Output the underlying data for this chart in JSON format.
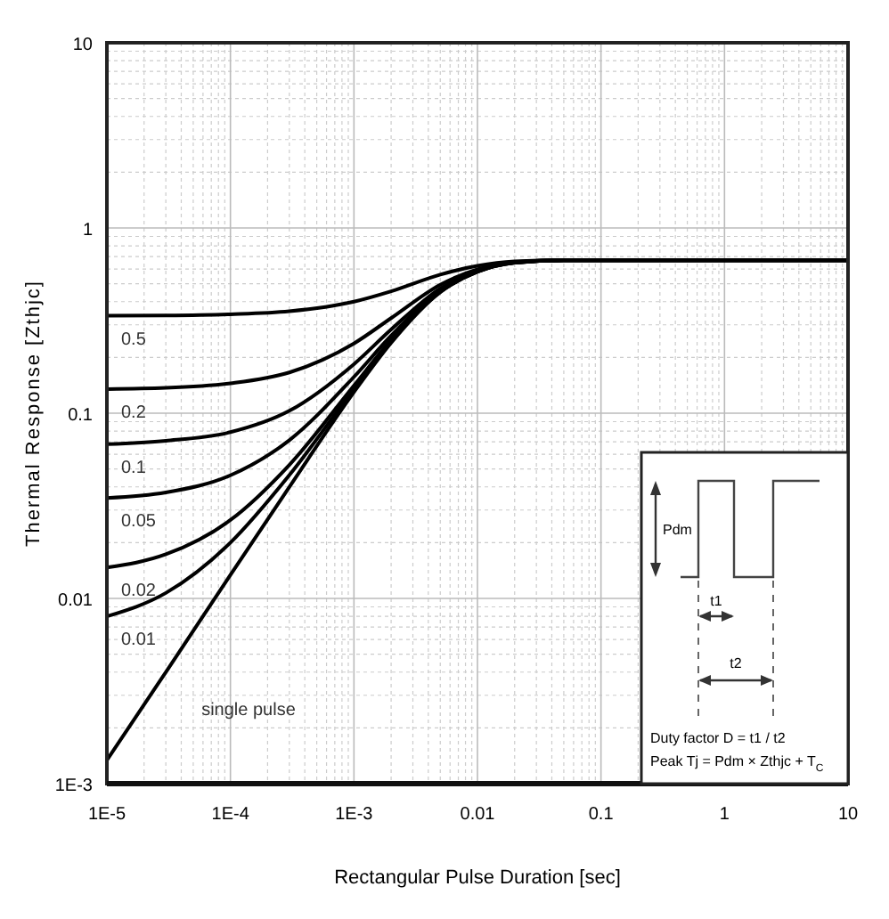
{
  "chart_data": {
    "type": "line",
    "xlabel": "Rectangular Pulse Duration [sec]",
    "ylabel": "Thermal Response [Zthjc]",
    "log": "xy",
    "grid": true,
    "marker": "none",
    "line_style": "solid",
    "xlim": [
      1e-05,
      10
    ],
    "xticks": [
      {
        "value": 1e-05,
        "label": "1E-5"
      },
      {
        "value": 0.0001,
        "label": "1E-4"
      },
      {
        "value": 0.001,
        "label": "1E-3"
      },
      0.01,
      0.1,
      1,
      10
    ],
    "ylim": [
      0.001,
      10
    ],
    "yticks": [
      {
        "value": 0.001,
        "label": "1E-3"
      },
      0.01,
      0.1,
      1,
      10
    ],
    "x": [
      1e-05,
      3e-05,
      0.0001,
      0.0003,
      0.001,
      0.002,
      0.005,
      0.01,
      0.02,
      0.05,
      0.1,
      1,
      10
    ],
    "series": [
      {
        "name": "0.5",
        "color": "#000000",
        "values": [
          0.336,
          0.337,
          0.342,
          0.355,
          0.4,
          0.455,
          0.56,
          0.625,
          0.66,
          0.67,
          0.67,
          0.67,
          0.67
        ]
      },
      {
        "name": "0.2",
        "color": "#000000",
        "values": [
          0.135,
          0.137,
          0.145,
          0.166,
          0.238,
          0.326,
          0.494,
          0.598,
          0.654,
          0.67,
          0.67,
          0.67,
          0.67
        ]
      },
      {
        "name": "0.1",
        "color": "#000000",
        "values": [
          0.068,
          0.071,
          0.079,
          0.103,
          0.184,
          0.283,
          0.472,
          0.589,
          0.652,
          0.67,
          0.67,
          0.67,
          0.67
        ]
      },
      {
        "name": "0.05",
        "color": "#000000",
        "values": [
          0.0348,
          0.0373,
          0.0462,
          0.0715,
          0.157,
          0.262,
          0.461,
          0.585,
          0.651,
          0.67,
          0.67,
          0.67,
          0.67
        ]
      },
      {
        "name": "0.02",
        "color": "#000000",
        "values": [
          0.0147,
          0.0173,
          0.0265,
          0.0526,
          0.141,
          0.249,
          0.454,
          0.582,
          0.65,
          0.67,
          0.67,
          0.67,
          0.67
        ]
      },
      {
        "name": "0.01",
        "color": "#000000",
        "values": [
          0.008,
          0.0107,
          0.02,
          0.0463,
          0.135,
          0.244,
          0.452,
          0.581,
          0.65,
          0.67,
          0.67,
          0.67,
          0.67
        ]
      },
      {
        "name": "single pulse",
        "color": "#000000",
        "values": [
          0.00134,
          0.004,
          0.0134,
          0.04,
          0.13,
          0.24,
          0.45,
          0.58,
          0.65,
          0.67,
          0.67,
          0.67,
          0.67
        ]
      }
    ],
    "annotations": [
      "Pdm",
      "t1",
      "t2",
      "Duty factor D = t1 / t2",
      "Peak Tj = Pdm × Zthjc + T$_{C}$"
    ]
  }
}
